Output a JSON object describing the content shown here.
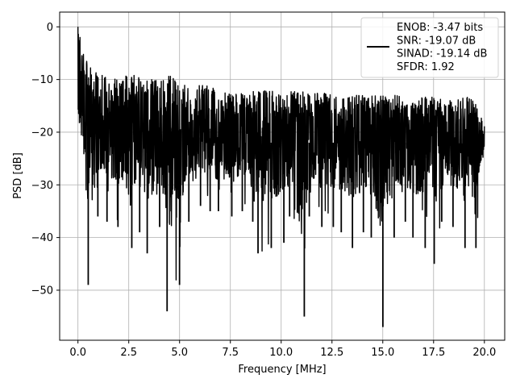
{
  "chart_data": {
    "type": "line",
    "xlabel": "Frequency [MHz]",
    "ylabel": "PSD [dB]",
    "xlim": [
      -0.9,
      21.0
    ],
    "ylim": [
      -59.5,
      2.8
    ],
    "xticks": [
      0.0,
      2.5,
      5.0,
      7.5,
      10.0,
      12.5,
      15.0,
      17.5,
      20.0
    ],
    "xtick_labels": [
      "0.0",
      "2.5",
      "5.0",
      "7.5",
      "10.0",
      "12.5",
      "15.0",
      "17.5",
      "20.0"
    ],
    "yticks": [
      0,
      -10,
      -20,
      -30,
      -40,
      -50
    ],
    "ytick_labels": [
      "0",
      "−10",
      "−20",
      "−30",
      "−40",
      "−50"
    ],
    "grid": true,
    "legend_position": "top-right",
    "series": [
      {
        "name": "ENOB: -3.47 bits\nSNR: -19.07 dB\nSINAD: -19.14 dB\nSFDR: 1.92",
        "color": "#000000",
        "x_range": [
          0.0,
          20.0
        ],
        "description": "dense noise-like power spectral density",
        "x": [
          0.0,
          0.5,
          1.0,
          1.5,
          2.0,
          2.5,
          3.0,
          3.5,
          4.0,
          4.5,
          5.0,
          5.5,
          6.0,
          6.5,
          7.0,
          7.5,
          8.0,
          8.5,
          9.0,
          9.5,
          10.0,
          10.5,
          11.0,
          11.5,
          12.0,
          12.5,
          13.0,
          13.5,
          14.0,
          14.5,
          15.0,
          15.5,
          16.0,
          16.5,
          17.0,
          17.5,
          18.0,
          18.5,
          19.0,
          19.5,
          20.0
        ],
        "y_upper": [
          0,
          -6,
          -9,
          -9,
          -10,
          -9,
          -9,
          -10,
          -10,
          -9,
          -10,
          -12,
          -11,
          -11,
          -12,
          -12,
          -12,
          -12,
          -12,
          -12,
          -13,
          -12,
          -12,
          -13,
          -12,
          -13,
          -13,
          -13,
          -13,
          -13,
          -13,
          -13,
          -13,
          -14,
          -13,
          -13,
          -14,
          -14,
          -13,
          -14,
          -18
        ],
        "y_lower": [
          -18,
          -49,
          -36,
          -37,
          -38,
          -42,
          -39,
          -43,
          -38,
          -54,
          -49,
          -37,
          -34,
          -35,
          -35,
          -36,
          -35,
          -37,
          -43,
          -42,
          -41,
          -36,
          -55,
          -36,
          -38,
          -38,
          -39,
          -42,
          -39,
          -40,
          -57,
          -40,
          -37,
          -40,
          -42,
          -45,
          -37,
          -38,
          -42,
          -42,
          -25
        ],
        "y_mean": [
          -14,
          -20,
          -20,
          -20,
          -20,
          -20,
          -20,
          -21,
          -21,
          -21,
          -21,
          -21,
          -21,
          -22,
          -22,
          -22,
          -22,
          -22,
          -22,
          -22,
          -22,
          -22,
          -22,
          -22,
          -22,
          -22,
          -22,
          -22,
          -22,
          -22,
          -22,
          -22,
          -22,
          -22,
          -22,
          -22,
          -22,
          -22,
          -22,
          -22,
          -22
        ]
      }
    ]
  }
}
